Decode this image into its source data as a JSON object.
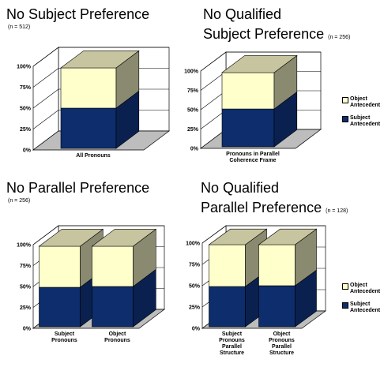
{
  "colors": {
    "subject": "#0D2D6C",
    "subject_side": "#0A2150",
    "object": "#FFFFCC",
    "object_top": "#C7C5A0",
    "object_side": "#8A8A70",
    "floor": "#BDBDBD"
  },
  "panels": [
    {
      "title": "No Subject Preference",
      "title_line2": "",
      "n": "(n = 512)"
    },
    {
      "title": "No Qualified",
      "title_line2": "Subject Preference",
      "n": "(n = 256)"
    },
    {
      "title": "No Parallel Preference",
      "title_line2": "",
      "n": "(n = 256)"
    },
    {
      "title": "No Qualified",
      "title_line2": "Parallel Preference",
      "n": "(n = 128)"
    }
  ],
  "legend": {
    "object": "Object Antecedent",
    "subject": "Subject Antecedent"
  },
  "chart_data": [
    {
      "type": "bar",
      "stacked": true,
      "title": "No Subject Preference (n = 512)",
      "categories": [
        "All Pronouns"
      ],
      "series": [
        {
          "name": "Subject Antecedent",
          "values": [
            50
          ]
        },
        {
          "name": "Object Antecedent",
          "values": [
            50
          ]
        }
      ],
      "ylim": [
        0,
        100
      ],
      "yticks": [
        "0%",
        "25%",
        "50%",
        "75%",
        "100%"
      ],
      "legend": "none"
    },
    {
      "type": "bar",
      "stacked": true,
      "title": "No Qualified Subject Preference (n = 256)",
      "categories": [
        "Pronouns in Parallel Coherence Frame"
      ],
      "series": [
        {
          "name": "Subject Antecedent",
          "values": [
            51
          ]
        },
        {
          "name": "Object Antecedent",
          "values": [
            49
          ]
        }
      ],
      "ylim": [
        0,
        100
      ],
      "yticks": [
        "0%",
        "25%",
        "50%",
        "75%",
        "100%"
      ],
      "legend": "right"
    },
    {
      "type": "bar",
      "stacked": true,
      "title": "No Parallel Preference (n = 256)",
      "categories": [
        "Subject Pronouns",
        "Object Pronouns"
      ],
      "series": [
        {
          "name": "Subject Antecedent",
          "values": [
            49,
            50
          ]
        },
        {
          "name": "Object Antecedent",
          "values": [
            51,
            50
          ]
        }
      ],
      "ylim": [
        0,
        100
      ],
      "yticks": [
        "0%",
        "25%",
        "50%",
        "75%",
        "100%"
      ],
      "legend": "none"
    },
    {
      "type": "bar",
      "stacked": true,
      "title": "No Qualified Parallel Preference (n = 128)",
      "categories": [
        "Subject Pronouns Parallel Structure",
        "Object Pronouns Parallel Structure"
      ],
      "series": [
        {
          "name": "Subject Antecedent",
          "values": [
            49,
            50
          ]
        },
        {
          "name": "Object Antecedent",
          "values": [
            51,
            50
          ]
        }
      ],
      "ylim": [
        0,
        100
      ],
      "yticks": [
        "0%",
        "25%",
        "50%",
        "75%",
        "100%"
      ],
      "legend": "right"
    }
  ]
}
